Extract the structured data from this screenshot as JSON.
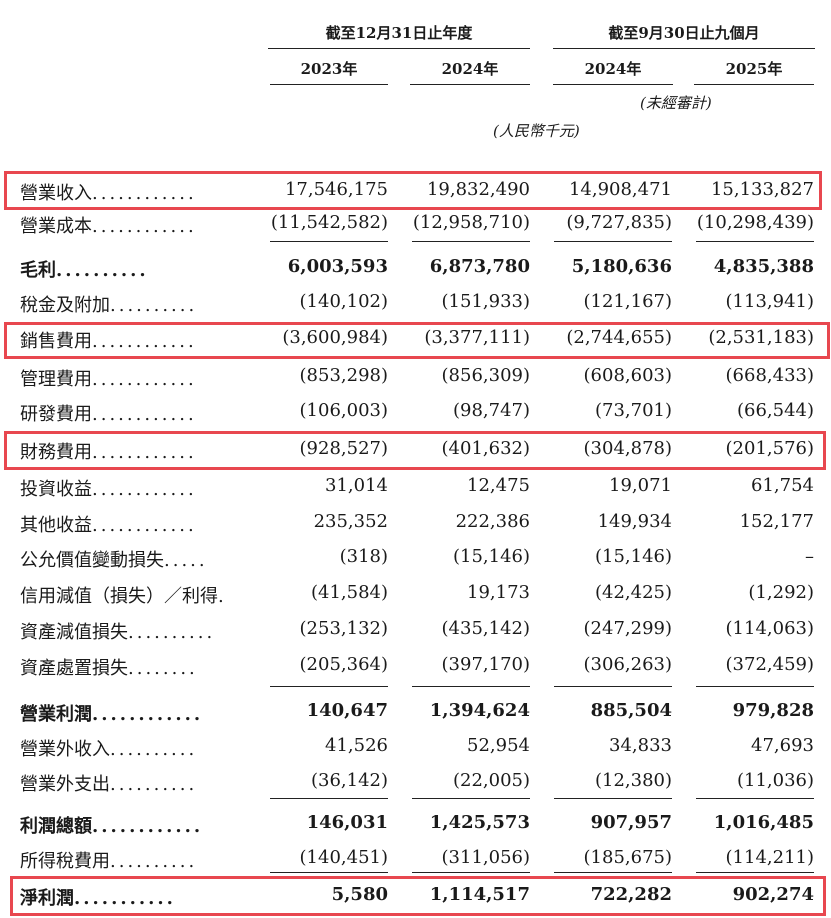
{
  "header": {
    "group1": "截至12月31日止年度",
    "group2": "截至9月30日止九個月",
    "years": [
      "2023年",
      "2024年",
      "2024年",
      "2025年"
    ],
    "unaudited": "(未經審計)",
    "currency": "(人民幣千元)"
  },
  "rows": [
    {
      "label": "營業收入",
      "dots": "............",
      "values": [
        "17,546,175",
        "19,832,490",
        "14,908,471",
        "15,133,827"
      ],
      "bold": false,
      "highlighted": true
    },
    {
      "label": "營業成本",
      "dots": "............",
      "values": [
        "(11,542,582)",
        "(12,958,710)",
        "(9,727,835)",
        "(10,298,439)"
      ],
      "bold": false,
      "highlighted": false
    },
    {
      "label": "毛利",
      "dots": "..........",
      "values": [
        "6,003,593",
        "6,873,780",
        "5,180,636",
        "4,835,388"
      ],
      "bold": true,
      "highlighted": false
    },
    {
      "label": "稅金及附加",
      "dots": "..........",
      "values": [
        "(140,102)",
        "(151,933)",
        "(121,167)",
        "(113,941)"
      ],
      "bold": false,
      "highlighted": false
    },
    {
      "label": "銷售費用",
      "dots": "............",
      "values": [
        "(3,600,984)",
        "(3,377,111)",
        "(2,744,655)",
        "(2,531,183)"
      ],
      "bold": false,
      "highlighted": true
    },
    {
      "label": "管理費用",
      "dots": "............",
      "values": [
        "(853,298)",
        "(856,309)",
        "(608,603)",
        "(668,433)"
      ],
      "bold": false,
      "highlighted": false
    },
    {
      "label": "研發費用",
      "dots": "............",
      "values": [
        "(106,003)",
        "(98,747)",
        "(73,701)",
        "(66,544)"
      ],
      "bold": false,
      "highlighted": false
    },
    {
      "label": "財務費用",
      "dots": "............",
      "values": [
        "(928,527)",
        "(401,632)",
        "(304,878)",
        "(201,576)"
      ],
      "bold": false,
      "highlighted": true
    },
    {
      "label": "投資收益",
      "dots": "............",
      "values": [
        "31,014",
        "12,475",
        "19,071",
        "61,754"
      ],
      "bold": false,
      "highlighted": false
    },
    {
      "label": "其他收益",
      "dots": "............",
      "values": [
        "235,352",
        "222,386",
        "149,934",
        "152,177"
      ],
      "bold": false,
      "highlighted": false
    },
    {
      "label": "公允價值變動損失",
      "dots": ".....",
      "values": [
        "(318)",
        "(15,146)",
        "(15,146)",
        "–"
      ],
      "bold": false,
      "highlighted": false
    },
    {
      "label": "信用減值（損失）／利得",
      "dots": ".",
      "values": [
        "(41,584)",
        "19,173",
        "(42,425)",
        "(1,292)"
      ],
      "bold": false,
      "highlighted": false
    },
    {
      "label": "資產減值損失",
      "dots": "..........",
      "values": [
        "(253,132)",
        "(435,142)",
        "(247,299)",
        "(114,063)"
      ],
      "bold": false,
      "highlighted": false
    },
    {
      "label": "資產處置損失",
      "dots": "........",
      "values": [
        "(205,364)",
        "(397,170)",
        "(306,263)",
        "(372,459)"
      ],
      "bold": false,
      "highlighted": false
    },
    {
      "label": "營業利潤",
      "dots": "............",
      "values": [
        "140,647",
        "1,394,624",
        "885,504",
        "979,828"
      ],
      "bold": true,
      "highlighted": false
    },
    {
      "label": "營業外收入",
      "dots": "..........",
      "values": [
        "41,526",
        "52,954",
        "34,833",
        "47,693"
      ],
      "bold": false,
      "highlighted": false
    },
    {
      "label": "營業外支出",
      "dots": "..........",
      "values": [
        "(36,142)",
        "(22,005)",
        "(12,380)",
        "(11,036)"
      ],
      "bold": false,
      "highlighted": false
    },
    {
      "label": "利潤總額",
      "dots": "............",
      "values": [
        "146,031",
        "1,425,573",
        "907,957",
        "1,016,485"
      ],
      "bold": true,
      "highlighted": false
    },
    {
      "label": "所得稅費用",
      "dots": "..........",
      "values": [
        "(140,451)",
        "(311,056)",
        "(185,675)",
        "(114,211)"
      ],
      "bold": false,
      "highlighted": false
    },
    {
      "label": "淨利潤",
      "dots": "...........",
      "values": [
        "5,580",
        "1,114,517",
        "722,282",
        "902,274"
      ],
      "bold": true,
      "highlighted": true
    }
  ]
}
